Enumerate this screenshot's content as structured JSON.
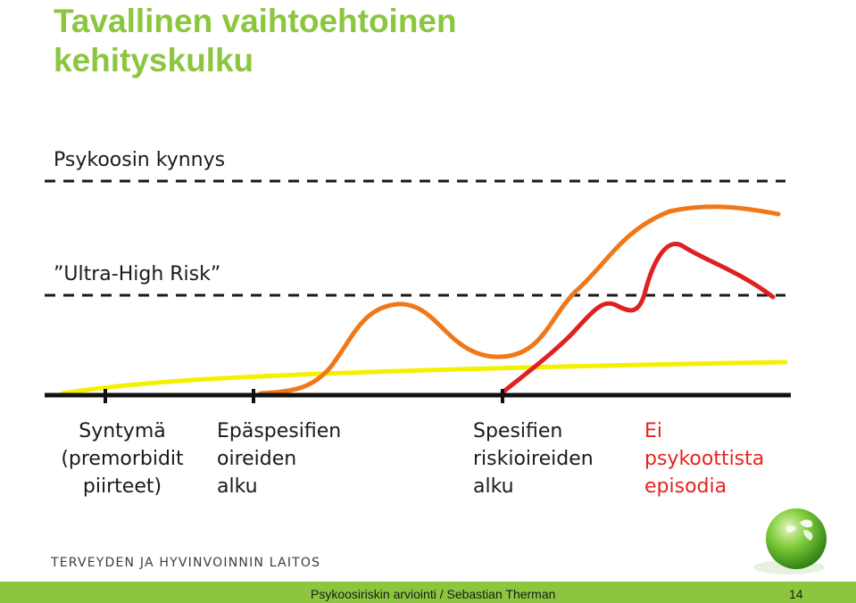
{
  "title": {
    "line1": "Tavallinen vaihtoehtoinen",
    "line2": "kehityskulku"
  },
  "thresholds": {
    "psychosis": "Psykoosin kynnys",
    "ultra_high_risk": "”Ultra-High Risk”"
  },
  "stages": [
    {
      "lines": [
        "Syntymä",
        "(premorbidit",
        "piirteet)"
      ]
    },
    {
      "lines": [
        "Epäspesifien",
        "oireiden",
        "alku"
      ]
    },
    {
      "lines": [
        "Spesifien",
        "riskioireiden",
        "alku"
      ]
    },
    {
      "lines": [
        "Ei",
        "psykoottista",
        "episodia"
      ]
    }
  ],
  "organization": "TERVEYDEN JA HYVINVOINNIN LAITOS",
  "footer": {
    "text": "Psykoosiriskin arviointi / Sebastian Therman",
    "page": "14"
  },
  "colors": {
    "accent_green": "#8cc63f",
    "baseline_yellow": "#f5f000",
    "curve_orange": "#f07818",
    "curve_red": "#e02020",
    "stage_red_text": "#e52320"
  }
}
